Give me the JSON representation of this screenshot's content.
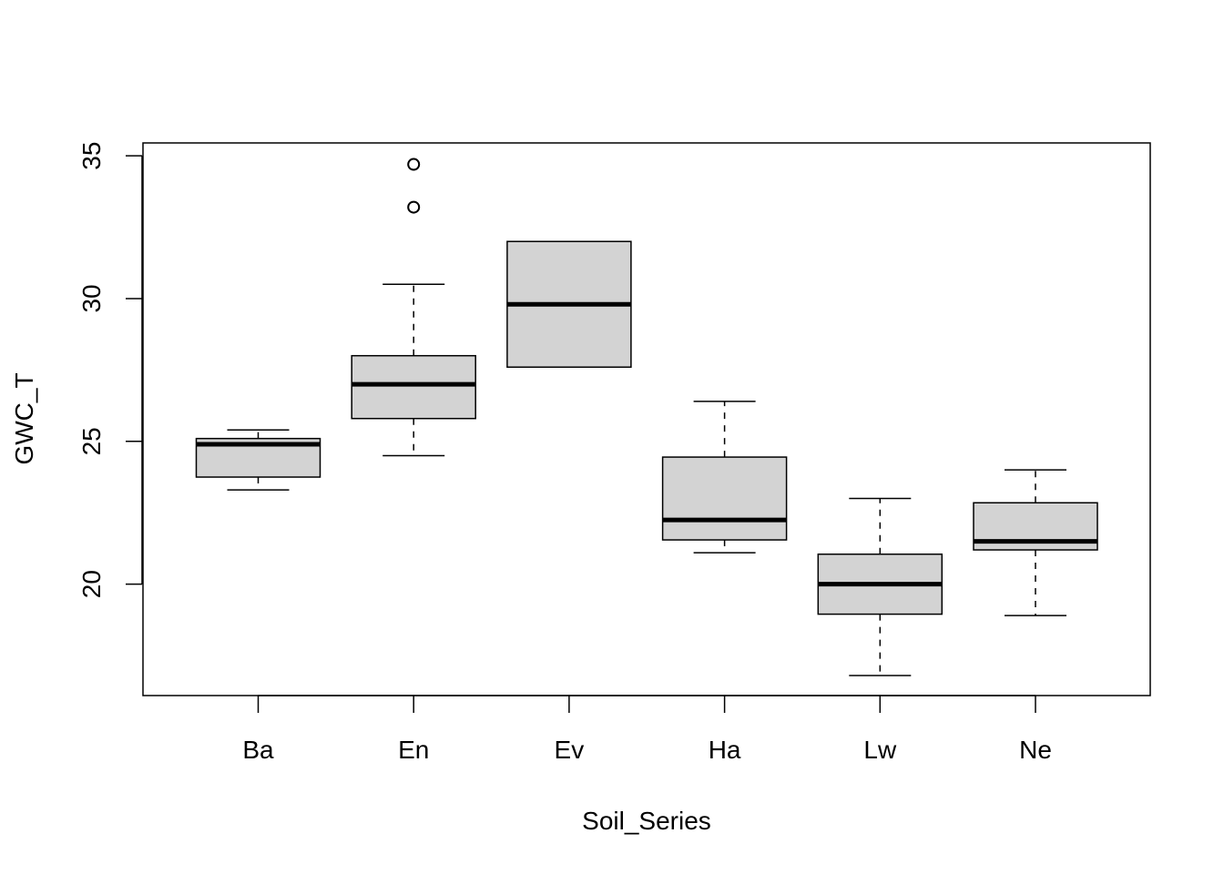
{
  "chart_data": {
    "type": "box",
    "title": "",
    "xlabel": "Soil_Series",
    "ylabel": "GWC_T",
    "ylim": [
      16.1,
      35.45
    ],
    "yticks": [
      20,
      25,
      30,
      35
    ],
    "grid": false,
    "box_fill": "#d3d3d3",
    "categories": [
      "Ba",
      "En",
      "Ev",
      "Ha",
      "Lw",
      "Ne"
    ],
    "boxes": [
      {
        "category": "Ba",
        "whisker_low": 23.3,
        "q1": 23.75,
        "median": 24.9,
        "q3": 25.1,
        "whisker_high": 25.4,
        "outliers": []
      },
      {
        "category": "En",
        "whisker_low": 24.5,
        "q1": 25.8,
        "median": 27.0,
        "q3": 28.0,
        "whisker_high": 30.5,
        "outliers": [
          33.2,
          34.7
        ]
      },
      {
        "category": "Ev",
        "whisker_low": 27.6,
        "q1": 27.6,
        "median": 29.8,
        "q3": 32.0,
        "whisker_high": 32.0,
        "outliers": []
      },
      {
        "category": "Ha",
        "whisker_low": 21.1,
        "q1": 21.55,
        "median": 22.25,
        "q3": 24.45,
        "whisker_high": 26.4,
        "outliers": []
      },
      {
        "category": "Lw",
        "whisker_low": 16.8,
        "q1": 18.95,
        "median": 20.0,
        "q3": 21.05,
        "whisker_high": 23.0,
        "outliers": []
      },
      {
        "category": "Ne",
        "whisker_low": 18.9,
        "q1": 21.2,
        "median": 21.5,
        "q3": 22.85,
        "whisker_high": 24.0,
        "outliers": []
      }
    ]
  }
}
